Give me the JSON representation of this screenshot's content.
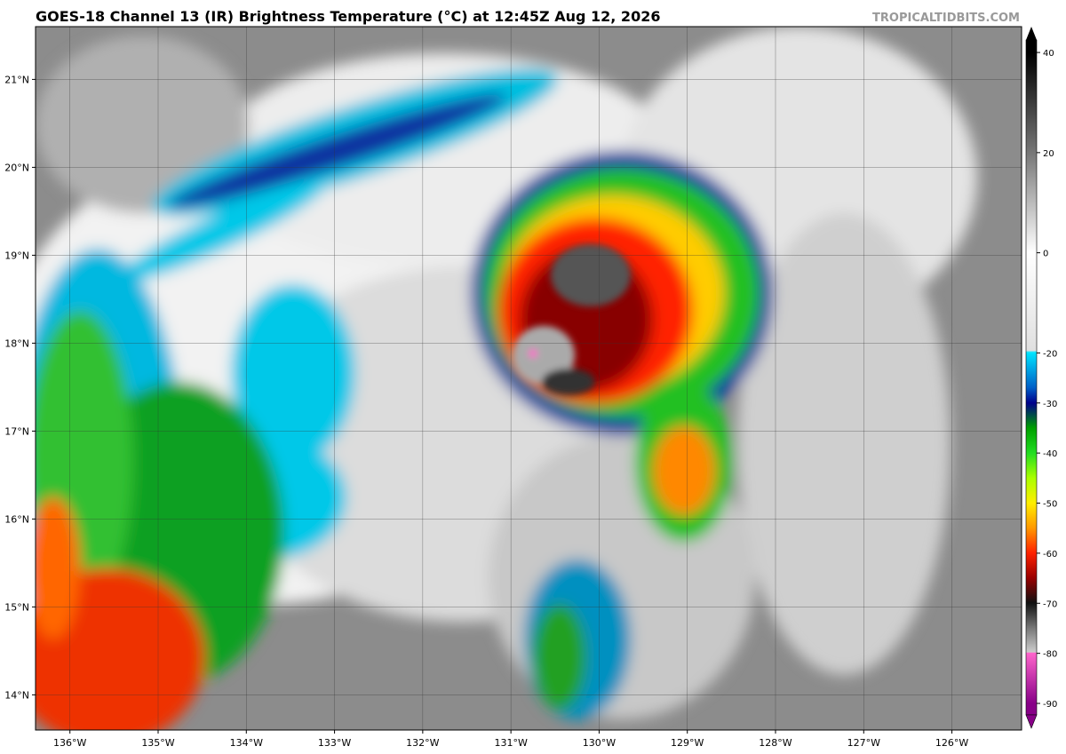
{
  "map": {
    "title": "GOES-18 Channel 13 (IR) Brightness Temperature (°C) at 12:45Z Aug 12, 2026",
    "watermark": "TROPICALTIDBITS.COM",
    "xlim": [
      -136.39,
      -125.21
    ],
    "ylim": [
      13.6,
      21.6
    ],
    "lon_ticks": [
      {
        "value": -136,
        "label": "136°W"
      },
      {
        "value": -135,
        "label": "135°W"
      },
      {
        "value": -134,
        "label": "134°W"
      },
      {
        "value": -133,
        "label": "133°W"
      },
      {
        "value": -132,
        "label": "132°W"
      },
      {
        "value": -131,
        "label": "131°W"
      },
      {
        "value": -130,
        "label": "130°W"
      },
      {
        "value": -129,
        "label": "129°W"
      },
      {
        "value": -128,
        "label": "128°W"
      },
      {
        "value": -127,
        "label": "127°W"
      },
      {
        "value": -126,
        "label": "126°W"
      }
    ],
    "lat_ticks": [
      {
        "value": 21,
        "label": "21°N"
      },
      {
        "value": 20,
        "label": "20°N"
      },
      {
        "value": 19,
        "label": "19°N"
      },
      {
        "value": 18,
        "label": "18°N"
      },
      {
        "value": 17,
        "label": "17°N"
      },
      {
        "value": 16,
        "label": "16°N"
      },
      {
        "value": 15,
        "label": "15°N"
      },
      {
        "value": 14,
        "label": "14°N"
      }
    ]
  },
  "colorbar": {
    "lim": [
      -92.3,
      42.5
    ],
    "ticks": [
      40,
      20,
      0,
      -20,
      -30,
      -40,
      -50,
      -60,
      -70,
      -80,
      -90
    ]
  }
}
